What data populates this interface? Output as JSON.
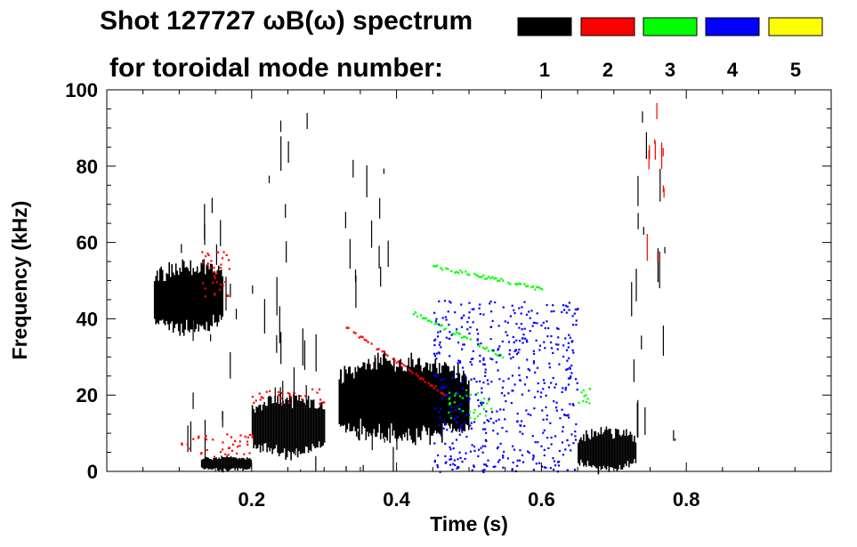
{
  "chart_data": {
    "type": "heatmap",
    "title_line1": "Shot 127727 ωB(ω) spectrum",
    "title_line2": "for toroidal mode number:",
    "xlabel": "Time (s)",
    "ylabel": "Frequency (kHz)",
    "xlim": [
      0.0,
      1.0
    ],
    "ylim": [
      0,
      100
    ],
    "x_ticks": [
      0.2,
      0.4,
      0.6,
      0.8
    ],
    "x_tick_labels": [
      "0.2",
      "0.4",
      "0.6",
      "0.8"
    ],
    "y_ticks": [
      0,
      20,
      40,
      60,
      80,
      100
    ],
    "y_tick_labels": [
      "0",
      "20",
      "40",
      "60",
      "80",
      "100"
    ],
    "legend": [
      {
        "label": "1",
        "color": "#000000"
      },
      {
        "label": "2",
        "color": "#ff0000"
      },
      {
        "label": "3",
        "color": "#00ff00"
      },
      {
        "label": "4",
        "color": "#0000ff"
      },
      {
        "label": "5",
        "color": "#ffff00"
      }
    ],
    "regions": [
      {
        "mode": 1,
        "t": [
          0.065,
          0.16
        ],
        "f": [
          36,
          55
        ],
        "kind": "blob"
      },
      {
        "mode": 1,
        "t": [
          0.1,
          0.18
        ],
        "f": [
          0,
          72
        ],
        "kind": "streaks"
      },
      {
        "mode": 1,
        "t": [
          0.13,
          0.2
        ],
        "f": [
          0,
          4
        ],
        "kind": "blob"
      },
      {
        "mode": 1,
        "t": [
          0.2,
          0.3
        ],
        "f": [
          4,
          20
        ],
        "kind": "blob"
      },
      {
        "mode": 1,
        "t": [
          0.2,
          0.29
        ],
        "f": [
          0,
          98
        ],
        "kind": "streaks"
      },
      {
        "mode": 1,
        "t": [
          0.32,
          0.5
        ],
        "f": [
          8,
          30
        ],
        "kind": "blob"
      },
      {
        "mode": 1,
        "t": [
          0.32,
          0.4
        ],
        "f": [
          0,
          82
        ],
        "kind": "streaks"
      },
      {
        "mode": 1,
        "t": [
          0.65,
          0.73
        ],
        "f": [
          0,
          11
        ],
        "kind": "blob"
      },
      {
        "mode": 1,
        "t": [
          0.72,
          0.79
        ],
        "f": [
          8,
          100
        ],
        "kind": "streaks"
      },
      {
        "mode": 2,
        "t": [
          0.73,
          0.77
        ],
        "f": [
          55,
          98
        ],
        "kind": "streaks"
      },
      {
        "mode": 2,
        "t": [
          0.13,
          0.17
        ],
        "f": [
          45,
          58
        ],
        "kind": "dots"
      },
      {
        "mode": 2,
        "t": [
          0.2,
          0.3
        ],
        "f": [
          18,
          22
        ],
        "kind": "dots"
      },
      {
        "mode": 2,
        "t": [
          0.1,
          0.2
        ],
        "f": [
          4,
          10
        ],
        "kind": "dots"
      },
      {
        "mode": 2,
        "t": [
          0.33,
          0.47
        ],
        "f": [
          20,
          38
        ],
        "kind": "band",
        "f_start": 38,
        "f_end": 20
      },
      {
        "mode": 3,
        "t": [
          0.45,
          0.6
        ],
        "f": [
          48,
          54
        ],
        "kind": "band",
        "f_start": 54,
        "f_end": 48
      },
      {
        "mode": 3,
        "t": [
          0.42,
          0.55
        ],
        "f": [
          30,
          42
        ],
        "kind": "band",
        "f_start": 42,
        "f_end": 30
      },
      {
        "mode": 3,
        "t": [
          0.47,
          0.53
        ],
        "f": [
          14,
          22
        ],
        "kind": "dots"
      },
      {
        "mode": 3,
        "t": [
          0.65,
          0.67
        ],
        "f": [
          18,
          22
        ],
        "kind": "dots"
      },
      {
        "mode": 4,
        "t": [
          0.45,
          0.65
        ],
        "f": [
          0,
          45
        ],
        "kind": "dots"
      }
    ]
  }
}
